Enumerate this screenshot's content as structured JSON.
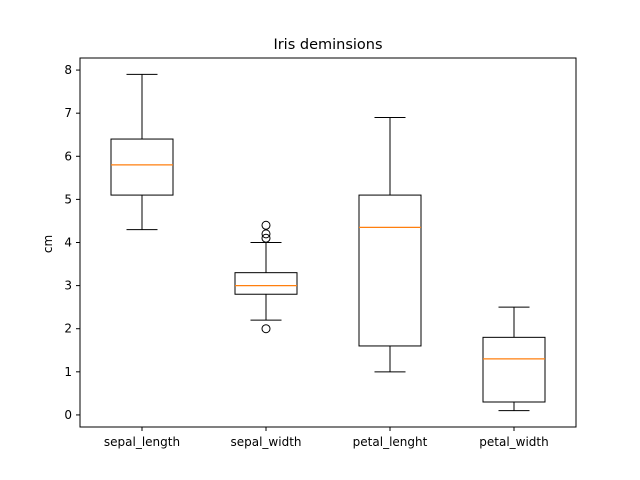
{
  "chart_data": {
    "type": "boxplot",
    "title": "Iris deminsions",
    "xlabel": "",
    "ylabel": "cm",
    "ylim": [
      -0.28,
      8.28
    ],
    "yticks": [
      0,
      1,
      2,
      3,
      4,
      5,
      6,
      7,
      8
    ],
    "grid": false,
    "categories": [
      "sepal_length",
      "sepal_width",
      "petal_lenght",
      "petal_width"
    ],
    "boxes": [
      {
        "whislo": 4.3,
        "q1": 5.1,
        "med": 5.8,
        "q3": 6.4,
        "whishi": 7.9,
        "fliers": []
      },
      {
        "whislo": 2.2,
        "q1": 2.8,
        "med": 3.0,
        "q3": 3.3,
        "whishi": 4.0,
        "fliers": [
          4.1,
          4.2,
          4.4,
          2.0
        ]
      },
      {
        "whislo": 1.0,
        "q1": 1.6,
        "med": 4.35,
        "q3": 5.1,
        "whishi": 6.9,
        "fliers": []
      },
      {
        "whislo": 0.1,
        "q1": 0.3,
        "med": 1.3,
        "q3": 1.8,
        "whishi": 2.5,
        "fliers": []
      }
    ],
    "colors": {
      "box": "#000000",
      "median": "#ff7f0e",
      "axis": "#000000"
    }
  }
}
